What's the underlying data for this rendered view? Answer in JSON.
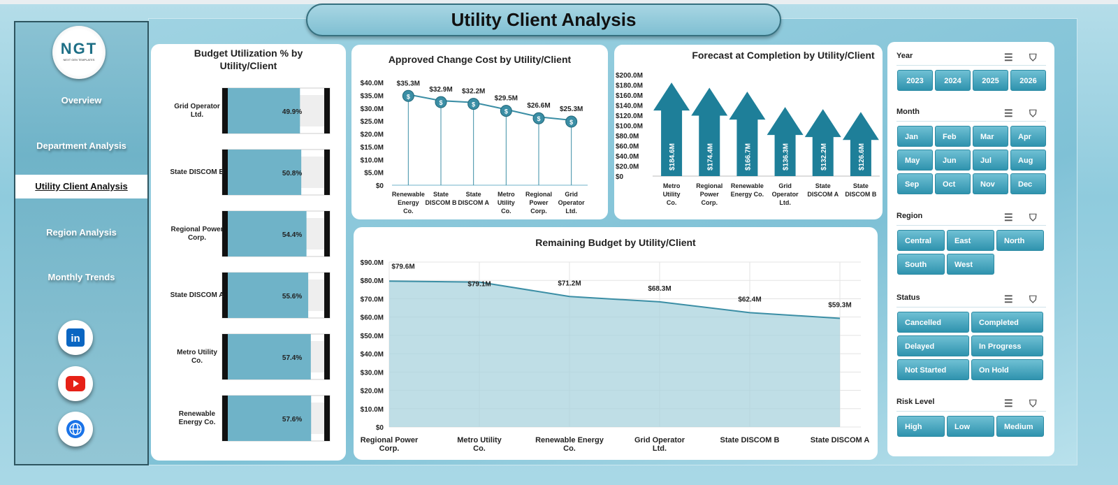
{
  "header": {
    "title": "Utility Client Analysis"
  },
  "sidebar": {
    "logo_text": "NGT",
    "logo_sub": "NEXT GEN TEMPLATES",
    "items": [
      {
        "label": "Overview"
      },
      {
        "label": "Department Analysis"
      },
      {
        "label": "Utility Client Analysis",
        "active": true
      },
      {
        "label": "Region Analysis"
      },
      {
        "label": "Monthly Trends"
      }
    ],
    "social": [
      "linkedin-icon",
      "youtube-icon",
      "globe-icon"
    ]
  },
  "colors": {
    "accent": "#2f93ae",
    "bar": "#6fb3c8",
    "line": "#3b8ea5",
    "arrow": "#1e7f99",
    "area": "#a9d3de"
  },
  "chart_data": [
    {
      "type": "bar",
      "title": "Budget Utilization % by Utility/Client",
      "categories": [
        "Grid Operator Ltd.",
        "State DISCOM B",
        "Regional Power Corp.",
        "State DISCOM A",
        "Metro Utility Co.",
        "Renewable Energy Co."
      ],
      "values": [
        49.9,
        50.8,
        54.4,
        55.6,
        57.4,
        57.6
      ],
      "labels": [
        "49.9%",
        "50.8%",
        "54.4%",
        "55.6%",
        "57.4%",
        "57.6%"
      ],
      "xlim": [
        0,
        100
      ],
      "orientation": "horizontal"
    },
    {
      "type": "line",
      "title": "Approved Change Cost by Utility/Client",
      "categories": [
        "Renewable Energy Co.",
        "State DISCOM B",
        "State DISCOM A",
        "Metro Utility Co.",
        "Regional Power Corp.",
        "Grid Operator Ltd."
      ],
      "values": [
        35.3,
        32.9,
        32.2,
        29.5,
        26.6,
        25.3
      ],
      "labels": [
        "$35.3M",
        "$32.9M",
        "$32.2M",
        "$29.5M",
        "$26.6M",
        "$25.3M"
      ],
      "ylim": [
        0,
        40
      ],
      "yticks": [
        "$0",
        "$5.0M",
        "$10.0M",
        "$15.0M",
        "$20.0M",
        "$25.0M",
        "$30.0M",
        "$35.0M",
        "$40.0M"
      ],
      "marker": "money-bag-icon"
    },
    {
      "type": "bar",
      "title": "Forecast at Completion by Utility/Client",
      "categories": [
        "Metro Utility Co.",
        "Regional Power Corp.",
        "Renewable Energy Co.",
        "Grid Operator Ltd.",
        "State DISCOM A",
        "State DISCOM B"
      ],
      "values": [
        184.6,
        174.4,
        166.7,
        136.3,
        132.2,
        126.6
      ],
      "labels": [
        "$184.6M",
        "$174.4M",
        "$166.7M",
        "$136.3M",
        "$132.2M",
        "$126.6M"
      ],
      "ylim": [
        0,
        200
      ],
      "yticks": [
        "$0",
        "$20.0M",
        "$40.0M",
        "$60.0M",
        "$80.0M",
        "$100.0M",
        "$120.0M",
        "$140.0M",
        "$160.0M",
        "$180.0M",
        "$200.0M"
      ],
      "shape": "arrow"
    },
    {
      "type": "area",
      "title": "Remaining Budget by Utility/Client",
      "categories": [
        "Regional Power Corp.",
        "Metro Utility Co.",
        "Renewable Energy Co.",
        "Grid Operator Ltd.",
        "State DISCOM B",
        "State DISCOM A"
      ],
      "values": [
        79.6,
        79.1,
        71.2,
        68.3,
        62.4,
        59.3
      ],
      "labels": [
        "$79.6M",
        "$79.1M",
        "$71.2M",
        "$68.3M",
        "$62.4M",
        "$59.3M"
      ],
      "ylim": [
        0,
        90
      ],
      "yticks": [
        "$0",
        "$10.0M",
        "$20.0M",
        "$30.0M",
        "$40.0M",
        "$50.0M",
        "$60.0M",
        "$70.0M",
        "$80.0M",
        "$90.0M"
      ],
      "grid": true
    }
  ],
  "slicers": [
    {
      "title": "Year",
      "items": [
        "2023",
        "2024",
        "2025",
        "2026"
      ]
    },
    {
      "title": "Month",
      "items": [
        "Jan",
        "Feb",
        "Mar",
        "Apr",
        "May",
        "Jun",
        "Jul",
        "Aug",
        "Sep",
        "Oct",
        "Nov",
        "Dec"
      ]
    },
    {
      "title": "Region",
      "items": [
        "Central",
        "East",
        "North",
        "South",
        "West"
      ]
    },
    {
      "title": "Status",
      "items": [
        "Cancelled",
        "Completed",
        "Delayed",
        "In Progress",
        "Not Started",
        "On Hold"
      ]
    },
    {
      "title": "Risk Level",
      "items": [
        "High",
        "Low",
        "Medium"
      ]
    }
  ]
}
